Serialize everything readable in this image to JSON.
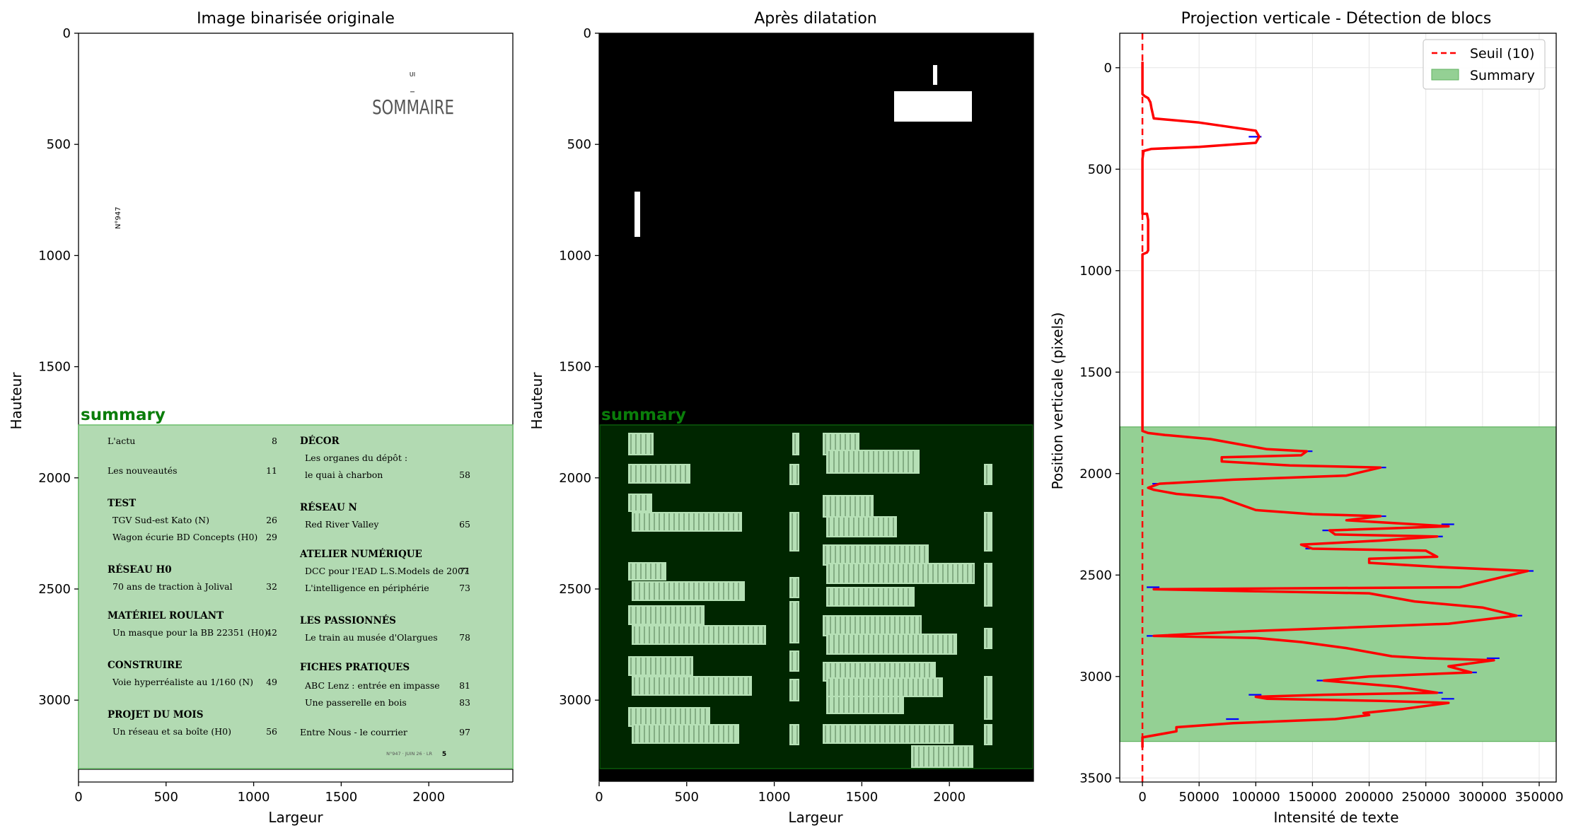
{
  "panels": {
    "original": {
      "title": "Image binarisée originale",
      "xlabel": "Largeur",
      "ylabel": "Hauteur",
      "xticks": [
        "0",
        "500",
        "1000",
        "1500",
        "2000"
      ],
      "yticks": [
        "0",
        "500",
        "1000",
        "1500",
        "2000",
        "2500",
        "3000"
      ],
      "region_label": "summary",
      "doc": {
        "top_mark": "UI",
        "heading": "SOMMAIRE",
        "side_text": "N°947",
        "footer_text": "N°947 · JUIN 26 · LR",
        "footer_page": "5",
        "left_column": [
          {
            "type": "entry",
            "label": "L'actu",
            "page": "8"
          },
          {
            "type": "entry",
            "label": "Les nouveautés",
            "page": "11"
          },
          {
            "type": "section",
            "label": "TEST"
          },
          {
            "type": "sub",
            "label": "TGV Sud-est Kato (N)",
            "page": "26"
          },
          {
            "type": "sub",
            "label": "Wagon écurie BD Concepts (H0)",
            "page": "29"
          },
          {
            "type": "section",
            "label": "RÉSEAU H0"
          },
          {
            "type": "sub",
            "label": "70 ans de traction à Jolival",
            "page": "32"
          },
          {
            "type": "section",
            "label": "MATÉRIEL ROULANT"
          },
          {
            "type": "sub",
            "label": "Un masque pour la BB 22351 (H0)",
            "page": "42"
          },
          {
            "type": "section",
            "label": "CONSTRUIRE"
          },
          {
            "type": "sub",
            "label": "Voie hyperréaliste au 1/160 (N)",
            "page": "49"
          },
          {
            "type": "section",
            "label": "PROJET DU MOIS"
          },
          {
            "type": "sub",
            "label": "Un réseau et sa boîte (H0)",
            "page": "56"
          }
        ],
        "right_column": [
          {
            "type": "section",
            "label": "DÉCOR"
          },
          {
            "type": "sub",
            "label": "Les organes du dépôt :",
            "page": ""
          },
          {
            "type": "sub",
            "label": "le quai à charbon",
            "page": "58"
          },
          {
            "type": "section",
            "label": "RÉSEAU N"
          },
          {
            "type": "sub",
            "label": "Red River Valley",
            "page": "65"
          },
          {
            "type": "section",
            "label": "ATELIER NUMÉRIQUE"
          },
          {
            "type": "sub",
            "label": "DCC pour l'EAD L.S.Models de 2007",
            "page": "71"
          },
          {
            "type": "sub",
            "label": "L'intelligence en périphérie",
            "page": "73"
          },
          {
            "type": "section",
            "label": "LES PASSIONNÉS"
          },
          {
            "type": "sub",
            "label": "Le train au musée d'Olargues",
            "page": "78"
          },
          {
            "type": "section",
            "label": "FICHES PRATIQUES"
          },
          {
            "type": "sub",
            "label": "ABC Lenz : entrée en impasse",
            "page": "81"
          },
          {
            "type": "sub",
            "label": "Une passerelle en bois",
            "page": "83"
          },
          {
            "type": "entry",
            "label": "Entre Nous - le courrier",
            "page": "97"
          }
        ]
      }
    },
    "dilated": {
      "title": "Après dilatation",
      "xlabel": "Largeur",
      "ylabel": "Hauteur",
      "xticks": [
        "0",
        "500",
        "1000",
        "1500",
        "2000"
      ],
      "yticks": [
        "0",
        "500",
        "1000",
        "1500",
        "2000",
        "2500",
        "3000"
      ],
      "region_label": "summary"
    },
    "projection": {
      "title": "Projection verticale - Détection de blocs",
      "xlabel": "Intensité de texte",
      "ylabel": "Position verticale (pixels)",
      "xticks": [
        "0",
        "50000",
        "100000",
        "150000",
        "200000",
        "250000",
        "300000",
        "350000"
      ],
      "yticks": [
        "0",
        "500",
        "1000",
        "1500",
        "2000",
        "2500",
        "3000",
        "3500"
      ],
      "legend": {
        "threshold": "Seuil (10)",
        "region": "Summary"
      }
    }
  },
  "chart_data": [
    {
      "type": "image",
      "title": "Image binarisée originale",
      "xlabel": "Largeur",
      "ylabel": "Hauteur",
      "xlim": [
        0,
        2480
      ],
      "ylim": [
        3350,
        0
      ],
      "regions": [
        {
          "label": "summary",
          "y_start": 1770,
          "y_end": 3320,
          "color": "#008000"
        }
      ]
    },
    {
      "type": "image",
      "title": "Après dilatation",
      "xlabel": "Largeur",
      "ylabel": "Hauteur",
      "xlim": [
        0,
        2480
      ],
      "ylim": [
        3350,
        0
      ],
      "regions": [
        {
          "label": "summary",
          "y_start": 1770,
          "y_end": 3320,
          "color": "#008000"
        }
      ]
    },
    {
      "type": "line",
      "title": "Projection verticale - Détection de blocs",
      "xlabel": "Intensité de texte",
      "ylabel": "Position verticale (pixels)",
      "xlim": [
        -20000,
        365000
      ],
      "ylim": [
        3520,
        -170
      ],
      "grid": true,
      "legend_position": "top-right",
      "threshold": {
        "name": "Seuil (10)",
        "value": 10,
        "color": "#ff0000"
      },
      "region": {
        "name": "Summary",
        "y_start": 1770,
        "y_end": 3320,
        "color": "#7fc97f"
      },
      "series": [
        {
          "color": "#ff0000",
          "x": [
            0,
            0,
            2000,
            5000,
            7000,
            8000,
            10000,
            50000,
            100000,
            103000,
            100000,
            50000,
            8000,
            1000,
            0,
            0,
            0,
            4000,
            5000,
            5000,
            4000,
            0,
            0,
            0,
            0,
            0,
            5000,
            20000,
            60000,
            90000,
            110000,
            145000,
            140000,
            70000,
            70000,
            130000,
            210000,
            180000,
            80000,
            15000,
            5000,
            10000,
            30000,
            50000,
            70000,
            80000,
            100000,
            150000,
            210000,
            180000,
            240000,
            270000,
            165000,
            170000,
            260000,
            210000,
            140000,
            150000,
            250000,
            260000,
            200000,
            200000,
            260000,
            340000,
            280000,
            10000,
            100000,
            200000,
            240000,
            300000,
            330000,
            270000,
            80000,
            10000,
            100000,
            140000,
            180000,
            220000,
            250000,
            310000,
            270000,
            290000,
            200000,
            160000,
            225000,
            260000,
            160000,
            100000,
            110000,
            210000,
            270000,
            230000,
            195000,
            200000,
            185000,
            170000,
            80000,
            30000,
            30000,
            0,
            0
          ],
          "y": [
            -30,
            130,
            140,
            150,
            170,
            200,
            250,
            270,
            310,
            340,
            370,
            390,
            400,
            410,
            450,
            700,
            720,
            720,
            750,
            900,
            910,
            920,
            1000,
            1500,
            1770,
            1790,
            1800,
            1810,
            1830,
            1860,
            1880,
            1890,
            1910,
            1920,
            1940,
            1960,
            1970,
            2010,
            2030,
            2050,
            2070,
            2080,
            2100,
            2110,
            2120,
            2140,
            2180,
            2200,
            2210,
            2230,
            2250,
            2260,
            2280,
            2300,
            2310,
            2330,
            2350,
            2370,
            2380,
            2410,
            2420,
            2440,
            2460,
            2480,
            2560,
            2570,
            2580,
            2590,
            2630,
            2660,
            2700,
            2740,
            2780,
            2800,
            2810,
            2830,
            2860,
            2900,
            2910,
            2920,
            2950,
            2980,
            3000,
            3020,
            3050,
            3080,
            3090,
            3100,
            3110,
            3120,
            3130,
            3160,
            3180,
            3190,
            3200,
            3210,
            3230,
            3250,
            3270,
            3300,
            3350
          ]
        }
      ],
      "markers": {
        "color": "#0000ff",
        "x": [
          100000,
          145000,
          210000,
          15000,
          210000,
          270000,
          165000,
          260000,
          150000,
          340000,
          10000,
          330000,
          10000,
          310000,
          290000,
          160000,
          260000,
          100000,
          270000,
          80000
        ],
        "y": [
          340,
          1890,
          1970,
          2050,
          2210,
          2250,
          2280,
          2310,
          2370,
          2480,
          2560,
          2700,
          2800,
          2910,
          2980,
          3020,
          3080,
          3090,
          3110,
          3210
        ]
      }
    }
  ]
}
